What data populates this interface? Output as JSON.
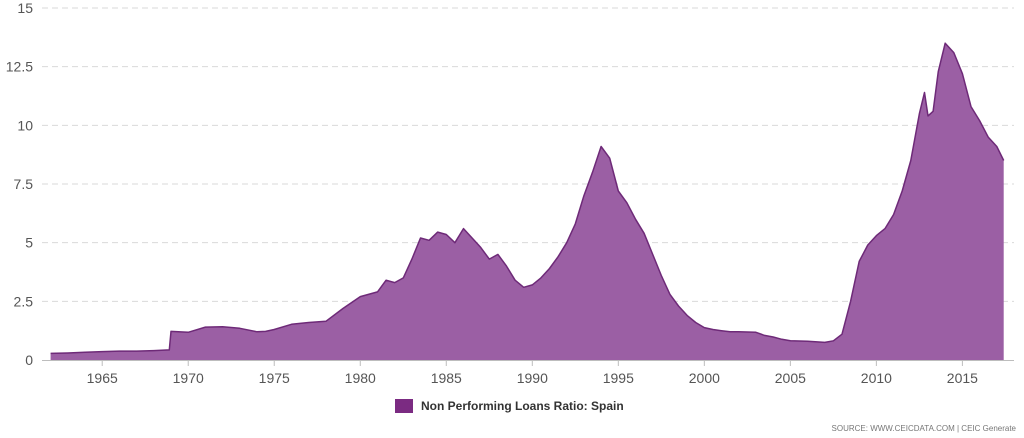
{
  "chart_data": {
    "type": "area",
    "title": "",
    "xlabel": "",
    "ylabel": "",
    "xlim": [
      1961.5,
      2018.0
    ],
    "ylim": [
      0,
      15
    ],
    "x_ticks": [
      {
        "value": 1965,
        "label": "1965"
      },
      {
        "value": 1970,
        "label": "1970"
      },
      {
        "value": 1975,
        "label": "1975"
      },
      {
        "value": 1980,
        "label": "1980"
      },
      {
        "value": 1985,
        "label": "1985"
      },
      {
        "value": 1990,
        "label": "1990"
      },
      {
        "value": 1995,
        "label": "1995"
      },
      {
        "value": 2000,
        "label": "2000"
      },
      {
        "value": 2005,
        "label": "2005"
      },
      {
        "value": 2010,
        "label": "2010"
      },
      {
        "value": 2015,
        "label": "2015"
      }
    ],
    "y_ticks": [
      {
        "value": 0,
        "label": "0"
      },
      {
        "value": 2.5,
        "label": "2.5"
      },
      {
        "value": 5,
        "label": "5"
      },
      {
        "value": 7.5,
        "label": "7.5"
      },
      {
        "value": 10,
        "label": "10"
      },
      {
        "value": 12.5,
        "label": "12.5"
      },
      {
        "value": 15,
        "label": "15"
      }
    ],
    "grid": true,
    "legend_position": "bottom-center",
    "series": [
      {
        "name": "Non Performing Loans Ratio: Spain",
        "color": "#9b5fa4",
        "line_color": "#6e2a78",
        "swatch_color": "#7b2b82",
        "points": [
          [
            1962.0,
            0.28
          ],
          [
            1963.0,
            0.3
          ],
          [
            1964.0,
            0.33
          ],
          [
            1965.0,
            0.36
          ],
          [
            1966.0,
            0.38
          ],
          [
            1967.0,
            0.38
          ],
          [
            1968.0,
            0.4
          ],
          [
            1968.9,
            0.43
          ],
          [
            1969.0,
            1.22
          ],
          [
            1970.0,
            1.18
          ],
          [
            1971.0,
            1.4
          ],
          [
            1972.0,
            1.42
          ],
          [
            1973.0,
            1.35
          ],
          [
            1974.0,
            1.2
          ],
          [
            1974.5,
            1.22
          ],
          [
            1975.0,
            1.3
          ],
          [
            1976.0,
            1.52
          ],
          [
            1977.0,
            1.6
          ],
          [
            1978.0,
            1.65
          ],
          [
            1979.0,
            2.2
          ],
          [
            1980.0,
            2.7
          ],
          [
            1981.0,
            2.9
          ],
          [
            1981.5,
            3.4
          ],
          [
            1982.0,
            3.3
          ],
          [
            1982.5,
            3.5
          ],
          [
            1983.0,
            4.3
          ],
          [
            1983.5,
            5.2
          ],
          [
            1984.0,
            5.1
          ],
          [
            1984.5,
            5.45
          ],
          [
            1985.0,
            5.35
          ],
          [
            1985.5,
            5.0
          ],
          [
            1986.0,
            5.6
          ],
          [
            1986.5,
            5.2
          ],
          [
            1987.0,
            4.8
          ],
          [
            1987.5,
            4.3
          ],
          [
            1988.0,
            4.5
          ],
          [
            1988.5,
            4.0
          ],
          [
            1989.0,
            3.4
          ],
          [
            1989.5,
            3.1
          ],
          [
            1990.0,
            3.2
          ],
          [
            1990.5,
            3.5
          ],
          [
            1991.0,
            3.9
          ],
          [
            1991.5,
            4.4
          ],
          [
            1992.0,
            5.0
          ],
          [
            1992.5,
            5.8
          ],
          [
            1993.0,
            7.0
          ],
          [
            1993.5,
            8.0
          ],
          [
            1994.0,
            9.1
          ],
          [
            1994.5,
            8.6
          ],
          [
            1995.0,
            7.2
          ],
          [
            1995.5,
            6.7
          ],
          [
            1996.0,
            6.0
          ],
          [
            1996.5,
            5.4
          ],
          [
            1997.0,
            4.5
          ],
          [
            1997.5,
            3.6
          ],
          [
            1998.0,
            2.8
          ],
          [
            1998.5,
            2.3
          ],
          [
            1999.0,
            1.9
          ],
          [
            1999.5,
            1.6
          ],
          [
            2000.0,
            1.38
          ],
          [
            2000.5,
            1.3
          ],
          [
            2001.0,
            1.25
          ],
          [
            2001.5,
            1.2
          ],
          [
            2002.0,
            1.2
          ],
          [
            2003.0,
            1.18
          ],
          [
            2003.5,
            1.05
          ],
          [
            2004.0,
            0.98
          ],
          [
            2004.5,
            0.88
          ],
          [
            2005.0,
            0.82
          ],
          [
            2006.0,
            0.8
          ],
          [
            2007.0,
            0.75
          ],
          [
            2007.5,
            0.82
          ],
          [
            2008.0,
            1.1
          ],
          [
            2008.5,
            2.5
          ],
          [
            2009.0,
            4.2
          ],
          [
            2009.5,
            4.9
          ],
          [
            2010.0,
            5.3
          ],
          [
            2010.5,
            5.6
          ],
          [
            2011.0,
            6.2
          ],
          [
            2011.5,
            7.2
          ],
          [
            2012.0,
            8.5
          ],
          [
            2012.5,
            10.5
          ],
          [
            2012.8,
            11.4
          ],
          [
            2013.0,
            10.4
          ],
          [
            2013.3,
            10.6
          ],
          [
            2013.6,
            12.3
          ],
          [
            2014.0,
            13.5
          ],
          [
            2014.5,
            13.1
          ],
          [
            2015.0,
            12.2
          ],
          [
            2015.5,
            10.8
          ],
          [
            2016.0,
            10.2
          ],
          [
            2016.5,
            9.5
          ],
          [
            2017.0,
            9.1
          ],
          [
            2017.4,
            8.5
          ]
        ]
      }
    ]
  },
  "legend": {
    "label": "Non Performing Loans Ratio: Spain"
  },
  "source_text": "SOURCE: WWW.CEICDATA.COM | CEIC Generate"
}
